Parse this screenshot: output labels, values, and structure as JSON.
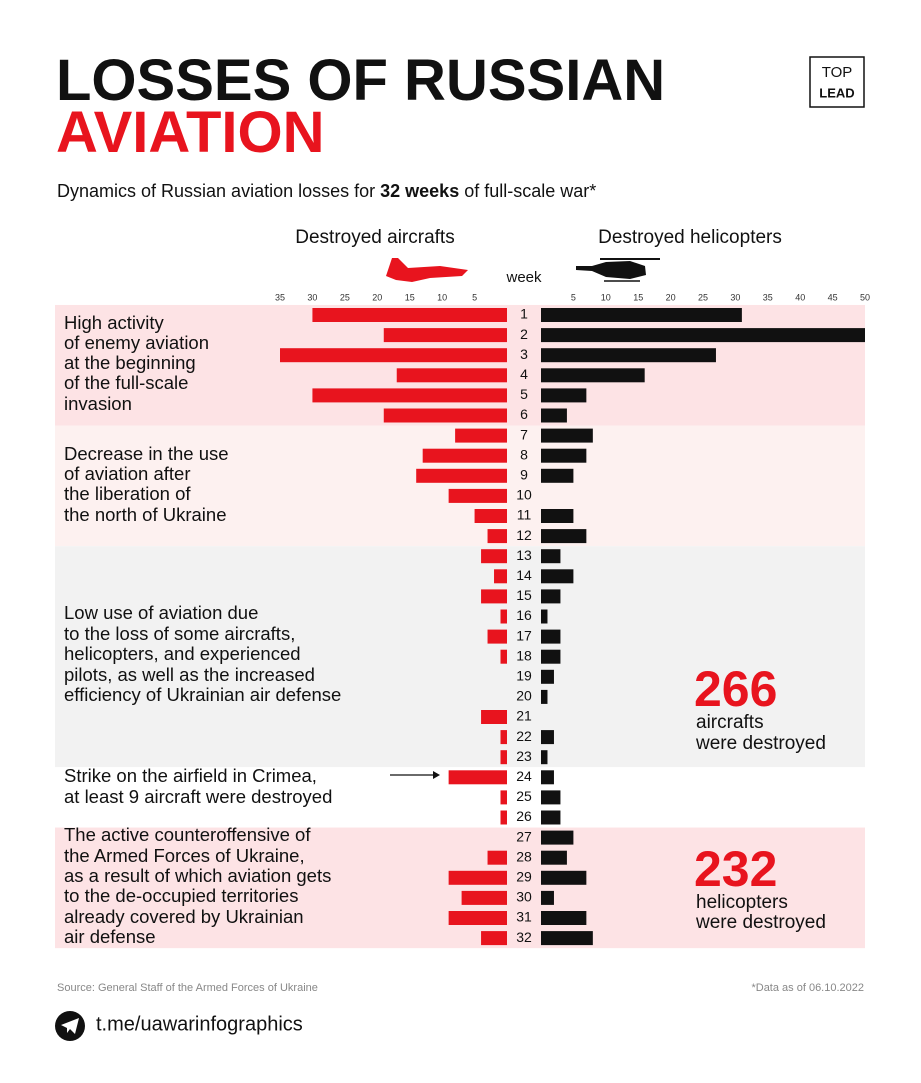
{
  "chart_data": {
    "type": "butterfly-bar",
    "title": [
      "LOSSES OF RUSSIAN",
      "AVIATION"
    ],
    "subtitle": [
      "Dynamics of Russian aviation losses for ",
      "32 weeks",
      " of full-scale war*"
    ],
    "category_label": "week",
    "categories": [
      "1",
      "2",
      "3",
      "4",
      "5",
      "6",
      "7",
      "8",
      "9",
      "10",
      "11",
      "12",
      "13",
      "14",
      "15",
      "16",
      "17",
      "18",
      "19",
      "20",
      "21",
      "22",
      "23",
      "24",
      "25",
      "26",
      "27",
      "28",
      "29",
      "30",
      "31",
      "32"
    ],
    "series": [
      {
        "name": "Destroyed aircrafts",
        "color": "#e8141e",
        "axis": "x",
        "values": [
          30,
          19,
          35,
          17,
          30,
          19,
          8,
          13,
          14,
          9,
          5,
          3,
          4,
          2,
          4,
          1,
          3,
          1,
          0,
          0,
          4,
          1,
          1,
          9,
          1,
          1,
          0,
          3,
          9,
          7,
          9,
          4
        ]
      },
      {
        "name": "Destroyed helicopters",
        "color": "#111111",
        "axis": "x2",
        "values": [
          31,
          50,
          27,
          16,
          7,
          4,
          8,
          7,
          5,
          0,
          5,
          7,
          3,
          5,
          3,
          1,
          3,
          3,
          2,
          1,
          0,
          2,
          1,
          2,
          3,
          3,
          5,
          4,
          7,
          2,
          7,
          8
        ]
      }
    ],
    "xlim": [
      0,
      35
    ],
    "xticks": [
      35,
      30,
      25,
      20,
      15,
      10,
      5
    ],
    "x2lim": [
      0,
      50
    ],
    "x2ticks": [
      5,
      10,
      15,
      20,
      25,
      30,
      35,
      40,
      45,
      50
    ],
    "annotations": [
      {
        "lines": [
          "High activity",
          "of enemy aviation",
          "at the beginning",
          "of the full-scale",
          "invasion"
        ]
      },
      {
        "lines": [
          "Decrease in the use",
          "of aviation after",
          "the liberation of",
          "the north of Ukraine"
        ]
      },
      {
        "lines": [
          "Low use of aviation due",
          "to the loss of some aircrafts,",
          "helicopters, and experienced",
          "pilots, as well as the increased",
          "efficiency of Ukrainian air defense"
        ]
      },
      {
        "lines": [
          "Strike on the airfield in Crimea,",
          "at least 9 aircraft were destroyed"
        ]
      },
      {
        "lines": [
          "The active counteroffensive of",
          "the Armed Forces of Ukraine,",
          "as a result of which aviation gets",
          "to the de-occupied territories",
          "already covered by Ukrainian",
          "air defense"
        ]
      }
    ]
  },
  "totals": [
    {
      "value": 266,
      "lines": [
        "aircrafts",
        "were destroyed"
      ]
    },
    {
      "value": 232,
      "lines": [
        "helicopters",
        "were destroyed"
      ]
    }
  ],
  "logo": [
    "TOP",
    "LEAD"
  ],
  "footer": {
    "source": "Source: General Staff of the Armed Forces of Ukraine",
    "note": "*Data as of 06.10.2022",
    "link": "t.me/uawarinfographics"
  }
}
